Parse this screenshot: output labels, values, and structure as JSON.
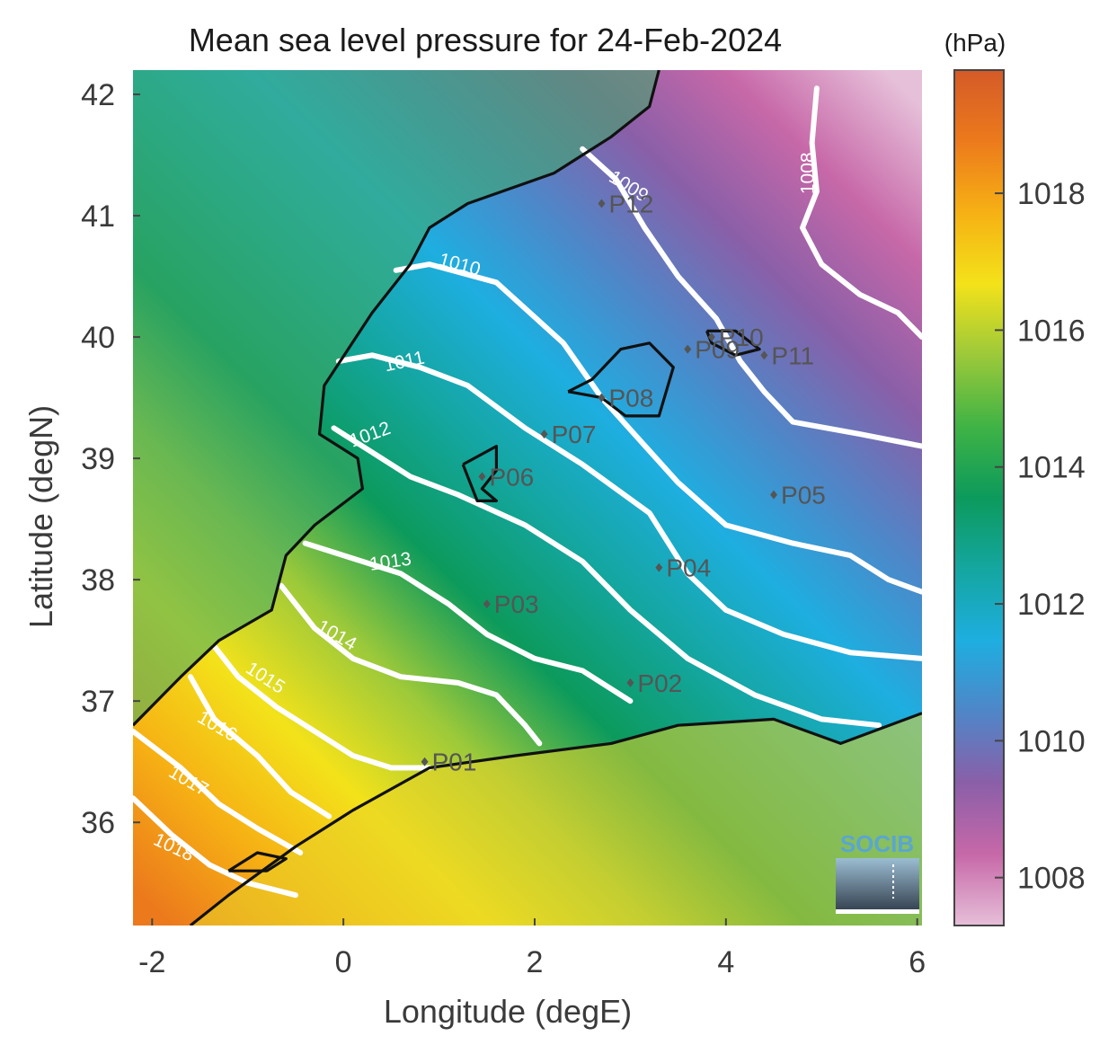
{
  "colors": {
    "scale": [
      "#e6bfd9",
      "#c768a8",
      "#8a5fa8",
      "#4f86c8",
      "#1eaee0",
      "#14a6a0",
      "#0c9a5c",
      "#3fb345",
      "#9cc93a",
      "#f3e21a",
      "#f6b114",
      "#ec7a1c",
      "#d55a28"
    ],
    "land_interior": "#46b86a",
    "coast": "#111111",
    "contour": "#ffffff"
  },
  "chart_data": {
    "type": "heatmap",
    "title": "Mean sea level pressure for 24-Feb-2024",
    "xlabel": "Longitude (degE)",
    "ylabel": "Latitude (degN)",
    "xlim": [
      -2.2,
      6.05
    ],
    "ylim": [
      35.15,
      42.2
    ],
    "xticks": [
      -2,
      0,
      2,
      4,
      6
    ],
    "yticks": [
      36,
      37,
      38,
      39,
      40,
      41,
      42
    ],
    "colorbar": {
      "unit": "(hPa)",
      "range": [
        1007.3,
        1019.8
      ],
      "ticks": [
        1008,
        1010,
        1012,
        1014,
        1016,
        1018
      ]
    },
    "contours": [
      {
        "level": 1008,
        "label": "1008",
        "points": [
          [
            4.95,
            42.05
          ],
          [
            4.9,
            41.6
          ],
          [
            4.95,
            41.2
          ],
          [
            4.8,
            40.9
          ],
          [
            5.0,
            40.6
          ],
          [
            5.4,
            40.35
          ],
          [
            5.8,
            40.2
          ],
          [
            6.05,
            40.0
          ]
        ],
        "label_at": [
          4.92,
          41.35
        ],
        "label_rot": -90
      },
      {
        "level": 1009,
        "label": "1009",
        "points": [
          [
            2.5,
            41.55
          ],
          [
            2.85,
            41.3
          ],
          [
            3.15,
            40.9
          ],
          [
            3.5,
            40.5
          ],
          [
            3.9,
            40.15
          ],
          [
            4.15,
            39.8
          ],
          [
            4.4,
            39.55
          ],
          [
            4.7,
            39.3
          ],
          [
            5.4,
            39.2
          ],
          [
            6.05,
            39.1
          ]
        ],
        "label_at": [
          2.95,
          41.2
        ],
        "label_rot": 32
      },
      {
        "level": 1010,
        "label": "1010",
        "points": [
          [
            0.55,
            40.55
          ],
          [
            0.9,
            40.6
          ],
          [
            1.6,
            40.45
          ],
          [
            2.3,
            39.95
          ],
          [
            2.7,
            39.5
          ],
          [
            3.1,
            39.15
          ],
          [
            3.5,
            38.8
          ],
          [
            4.0,
            38.45
          ],
          [
            4.7,
            38.3
          ],
          [
            5.3,
            38.2
          ],
          [
            5.7,
            38.0
          ],
          [
            6.05,
            37.9
          ]
        ],
        "label_at": [
          1.2,
          40.55
        ],
        "label_rot": 15
      },
      {
        "level": 1011,
        "label": "1011",
        "points": [
          [
            -0.05,
            39.8
          ],
          [
            0.3,
            39.85
          ],
          [
            0.8,
            39.75
          ],
          [
            1.3,
            39.6
          ],
          [
            1.9,
            39.25
          ],
          [
            2.5,
            38.95
          ],
          [
            3.2,
            38.55
          ],
          [
            3.6,
            38.05
          ],
          [
            4.0,
            37.75
          ],
          [
            4.6,
            37.55
          ],
          [
            5.3,
            37.4
          ],
          [
            6.05,
            37.35
          ]
        ],
        "label_at": [
          0.65,
          39.75
        ],
        "label_rot": -12
      },
      {
        "level": 1012,
        "label": "1012",
        "points": [
          [
            -0.1,
            39.25
          ],
          [
            0.3,
            39.05
          ],
          [
            0.7,
            38.85
          ],
          [
            1.2,
            38.7
          ],
          [
            1.9,
            38.45
          ],
          [
            2.5,
            38.15
          ],
          [
            3.0,
            37.75
          ],
          [
            3.6,
            37.35
          ],
          [
            4.3,
            37.05
          ],
          [
            5.0,
            36.85
          ],
          [
            5.6,
            36.8
          ]
        ],
        "label_at": [
          0.3,
          39.15
        ],
        "label_rot": -20
      },
      {
        "level": 1013,
        "label": "1013",
        "points": [
          [
            -0.4,
            38.3
          ],
          [
            0.0,
            38.2
          ],
          [
            0.6,
            38.05
          ],
          [
            1.1,
            37.8
          ],
          [
            1.5,
            37.55
          ],
          [
            2.0,
            37.35
          ],
          [
            2.5,
            37.25
          ],
          [
            3.0,
            37.0
          ]
        ],
        "label_at": [
          0.5,
          38.1
        ],
        "label_rot": -8
      },
      {
        "level": 1014,
        "label": "1014",
        "points": [
          [
            -0.65,
            37.95
          ],
          [
            -0.3,
            37.6
          ],
          [
            0.1,
            37.35
          ],
          [
            0.6,
            37.2
          ],
          [
            1.2,
            37.15
          ],
          [
            1.6,
            37.05
          ],
          [
            1.9,
            36.8
          ],
          [
            2.05,
            36.65
          ]
        ],
        "label_at": [
          -0.1,
          37.5
        ],
        "label_rot": 30
      },
      {
        "level": 1015,
        "label": "1015",
        "points": [
          [
            -1.35,
            37.45
          ],
          [
            -1.1,
            37.2
          ],
          [
            -0.7,
            36.95
          ],
          [
            -0.3,
            36.75
          ],
          [
            0.1,
            36.55
          ],
          [
            0.5,
            36.45
          ],
          [
            0.9,
            36.45
          ]
        ],
        "label_at": [
          -0.85,
          37.15
        ],
        "label_rot": 33
      },
      {
        "level": 1016,
        "label": "1016",
        "points": [
          [
            -1.6,
            37.2
          ],
          [
            -1.35,
            36.85
          ],
          [
            -0.9,
            36.55
          ],
          [
            -0.55,
            36.25
          ],
          [
            -0.15,
            36.05
          ]
        ],
        "label_at": [
          -1.35,
          36.75
        ],
        "label_rot": 30
      },
      {
        "level": 1017,
        "label": "1017",
        "points": [
          [
            -2.2,
            36.75
          ],
          [
            -1.7,
            36.45
          ],
          [
            -1.3,
            36.15
          ],
          [
            -0.9,
            35.95
          ],
          [
            -0.45,
            35.75
          ]
        ],
        "label_at": [
          -1.65,
          36.3
        ],
        "label_rot": 30
      },
      {
        "level": 1018,
        "label": "1018",
        "points": [
          [
            -2.2,
            36.2
          ],
          [
            -1.8,
            35.9
          ],
          [
            -1.4,
            35.65
          ],
          [
            -1.0,
            35.5
          ],
          [
            -0.5,
            35.4
          ]
        ],
        "label_at": [
          -1.8,
          35.75
        ],
        "label_rot": 25
      }
    ],
    "stations": [
      {
        "name": "P01",
        "lon": 0.85,
        "lat": 36.5
      },
      {
        "name": "P02",
        "lon": 3.0,
        "lat": 37.15
      },
      {
        "name": "P03",
        "lon": 1.5,
        "lat": 37.8
      },
      {
        "name": "P04",
        "lon": 3.3,
        "lat": 38.1
      },
      {
        "name": "P05",
        "lon": 4.5,
        "lat": 38.7
      },
      {
        "name": "P06",
        "lon": 1.45,
        "lat": 38.85
      },
      {
        "name": "P07",
        "lon": 2.1,
        "lat": 39.2
      },
      {
        "name": "P08",
        "lon": 2.7,
        "lat": 39.5
      },
      {
        "name": "P09",
        "lon": 3.6,
        "lat": 39.9
      },
      {
        "name": "P10",
        "lon": 3.85,
        "lat": 40.0
      },
      {
        "name": "P11",
        "lon": 4.4,
        "lat": 39.85
      },
      {
        "name": "P12",
        "lon": 2.7,
        "lat": 41.1
      }
    ]
  },
  "logo": {
    "text": "SOCIB"
  }
}
